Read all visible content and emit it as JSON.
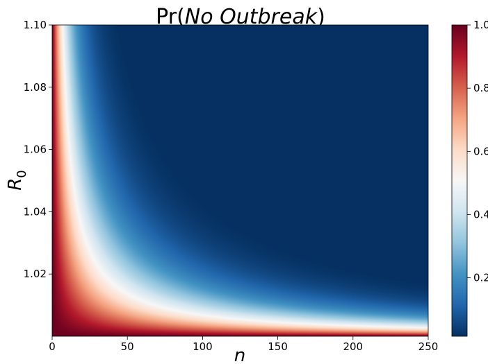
{
  "chart_data": {
    "type": "heatmap",
    "title_prefix": "Pr(",
    "title_italic": "No  Outbreak",
    "title_suffix": ")",
    "xlabel": "n",
    "ylabel_main": "R",
    "ylabel_sub": "0",
    "xlim": [
      0,
      250
    ],
    "ylim": [
      1.0,
      1.1
    ],
    "xticks": [
      {
        "value": 0,
        "label": "0"
      },
      {
        "value": 50,
        "label": "50"
      },
      {
        "value": 100,
        "label": "100"
      },
      {
        "value": 150,
        "label": "150"
      },
      {
        "value": 200,
        "label": "200"
      },
      {
        "value": 250,
        "label": "250"
      }
    ],
    "yticks": [
      {
        "value": 1.02,
        "label": "1.02"
      },
      {
        "value": 1.04,
        "label": "1.04"
      },
      {
        "value": 1.06,
        "label": "1.06"
      },
      {
        "value": 1.08,
        "label": "1.08"
      },
      {
        "value": 1.1,
        "label": "1.10"
      }
    ],
    "function": "Pr(No Outbreak) = (1/R0)^n",
    "colormap": "RdBu_r",
    "colormap_stops": [
      "#053061",
      "#2166ac",
      "#4393c3",
      "#92c5de",
      "#d1e5f0",
      "#f7f7f7",
      "#fddbc7",
      "#f4a582",
      "#d6604d",
      "#b2182b",
      "#67001f"
    ],
    "colorbar": {
      "range": [
        0.015,
        1.0
      ],
      "ticks": [
        {
          "value": 0.2,
          "label": "0.2"
        },
        {
          "value": 0.4,
          "label": "0.4"
        },
        {
          "value": 0.6,
          "label": "0.6"
        },
        {
          "value": 0.8,
          "label": "0.8"
        },
        {
          "value": 1.0,
          "label": "1.0"
        }
      ]
    }
  }
}
